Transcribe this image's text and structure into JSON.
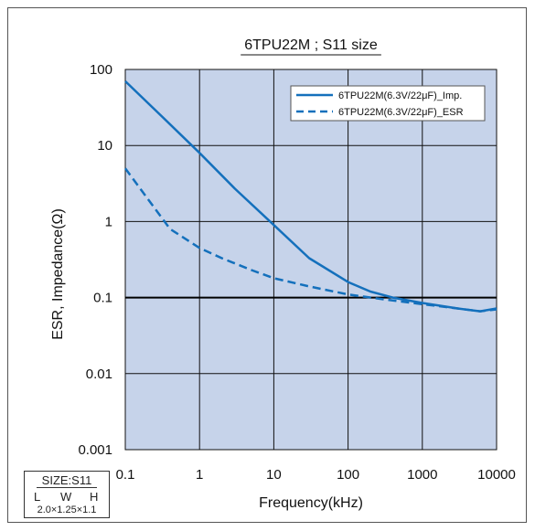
{
  "chart_data": {
    "type": "line",
    "title": "6TPU22M ; S11 size",
    "xlabel": "Frequency(kHz)",
    "ylabel": "ESR, Impedance(Ω)",
    "x_scale": "log",
    "y_scale": "log",
    "xlim": [
      0.1,
      10000
    ],
    "ylim": [
      0.001,
      100
    ],
    "x_ticks": [
      "0.1",
      "1",
      "10",
      "100",
      "1000",
      "10000"
    ],
    "y_ticks": [
      "100",
      "10",
      "1",
      "0.1",
      "0.01",
      "0.001"
    ],
    "grid": true,
    "legend_position": "top-right",
    "colors": {
      "plot_bg": "#c6d3ea",
      "series": "#1470bc",
      "grid": "#111111"
    },
    "series": [
      {
        "name": "6TPU22M(6.3V/22μF)_Imp.",
        "style": "solid",
        "points": [
          [
            0.1,
            70
          ],
          [
            0.3,
            25
          ],
          [
            1,
            8
          ],
          [
            3,
            2.7
          ],
          [
            10,
            0.9
          ],
          [
            30,
            0.33
          ],
          [
            100,
            0.16
          ],
          [
            200,
            0.12
          ],
          [
            400,
            0.1
          ],
          [
            1000,
            0.085
          ],
          [
            3000,
            0.072
          ],
          [
            6000,
            0.066
          ],
          [
            10000,
            0.072
          ]
        ]
      },
      {
        "name": "6TPU22M(6.3V/22μF)_ESR",
        "style": "dashed",
        "points": [
          [
            0.1,
            5
          ],
          [
            0.2,
            2
          ],
          [
            0.4,
            0.8
          ],
          [
            1,
            0.45
          ],
          [
            2,
            0.33
          ],
          [
            5,
            0.23
          ],
          [
            10,
            0.18
          ],
          [
            30,
            0.14
          ],
          [
            100,
            0.11
          ],
          [
            300,
            0.095
          ],
          [
            1000,
            0.082
          ],
          [
            3000,
            0.072
          ],
          [
            6000,
            0.066
          ],
          [
            10000,
            0.07
          ]
        ]
      }
    ],
    "hline": 0.1
  },
  "size_box": {
    "title": "SIZE:S11",
    "col_l": "L",
    "col_w": "W",
    "col_h": "H",
    "dims": "2.0×1.25×1.1"
  }
}
